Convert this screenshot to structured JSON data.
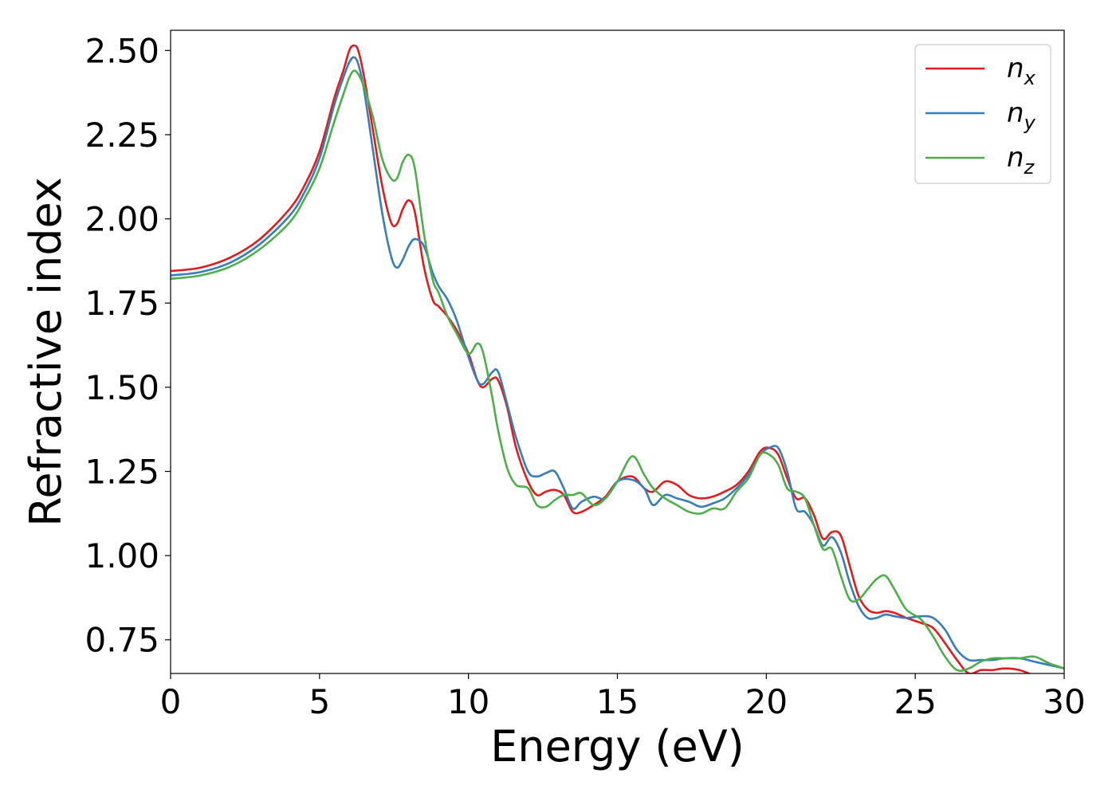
{
  "chart_data": {
    "type": "line",
    "xlabel": "Energy (eV)",
    "ylabel": "Refractive index",
    "xlim": [
      0,
      30
    ],
    "ylim": [
      0.65,
      2.56
    ],
    "xticks": [
      "0",
      "5",
      "10",
      "15",
      "20",
      "25",
      "30"
    ],
    "yticks": [
      "0.75",
      "1.00",
      "1.25",
      "1.50",
      "1.75",
      "2.00",
      "2.25",
      "2.50"
    ],
    "grid": false,
    "legend_position": "top-right",
    "series": [
      {
        "name": "n",
        "subscript": "x",
        "color": "#e41a1c",
        "x": [
          0,
          1,
          2,
          3,
          4,
          4.5,
          5,
          5.5,
          5.8,
          6.0,
          6.15,
          6.3,
          6.5,
          6.8,
          7.1,
          7.4,
          7.6,
          7.8,
          8.0,
          8.2,
          8.5,
          8.8,
          9.0,
          9.3,
          9.6,
          10.0,
          10.3,
          10.5,
          10.8,
          11.0,
          11.3,
          11.6,
          12.0,
          12.3,
          12.6,
          12.9,
          13.2,
          13.5,
          13.8,
          14.2,
          14.6,
          15.0,
          15.5,
          15.9,
          16.2,
          16.6,
          17.0,
          17.4,
          17.8,
          18.2,
          18.6,
          19.0,
          19.4,
          19.8,
          20.1,
          20.4,
          20.7,
          21.0,
          21.3,
          21.6,
          21.9,
          22.2,
          22.5,
          22.8,
          23.1,
          23.4,
          23.7,
          24.0,
          24.3,
          24.7,
          25.2,
          25.6,
          26.0,
          26.4,
          26.8,
          27.2,
          27.6,
          28.0,
          28.5,
          29.0,
          29.5,
          30.0
        ],
        "y": [
          1.845,
          1.855,
          1.885,
          1.94,
          2.03,
          2.1,
          2.2,
          2.36,
          2.44,
          2.5,
          2.515,
          2.5,
          2.42,
          2.26,
          2.1,
          1.99,
          1.985,
          2.03,
          2.055,
          2.02,
          1.86,
          1.76,
          1.74,
          1.71,
          1.67,
          1.6,
          1.52,
          1.5,
          1.525,
          1.52,
          1.44,
          1.32,
          1.22,
          1.18,
          1.19,
          1.195,
          1.18,
          1.13,
          1.13,
          1.15,
          1.175,
          1.22,
          1.235,
          1.2,
          1.19,
          1.22,
          1.21,
          1.18,
          1.17,
          1.175,
          1.19,
          1.21,
          1.25,
          1.31,
          1.32,
          1.3,
          1.23,
          1.17,
          1.17,
          1.12,
          1.05,
          1.07,
          1.06,
          0.97,
          0.88,
          0.84,
          0.83,
          0.835,
          0.83,
          0.815,
          0.8,
          0.785,
          0.74,
          0.69,
          0.65,
          0.66,
          0.66,
          0.665,
          0.66,
          0.645,
          0.645,
          0.645
        ]
      },
      {
        "name": "n",
        "subscript": "y",
        "color": "#377eb8",
        "x": [
          0,
          1,
          2,
          3,
          4,
          4.5,
          5,
          5.5,
          5.8,
          6.0,
          6.15,
          6.3,
          6.5,
          6.8,
          7.1,
          7.4,
          7.6,
          7.8,
          8.0,
          8.2,
          8.5,
          8.8,
          9.0,
          9.3,
          9.6,
          10.0,
          10.3,
          10.5,
          10.8,
          11.0,
          11.3,
          11.6,
          12.0,
          12.3,
          12.6,
          12.9,
          13.2,
          13.5,
          13.8,
          14.2,
          14.6,
          15.0,
          15.5,
          15.9,
          16.2,
          16.6,
          17.0,
          17.4,
          17.8,
          18.2,
          18.6,
          19.0,
          19.4,
          19.8,
          20.1,
          20.4,
          20.7,
          21.0,
          21.3,
          21.6,
          21.9,
          22.2,
          22.5,
          22.8,
          23.1,
          23.4,
          23.7,
          24.0,
          24.3,
          24.7,
          25.2,
          25.6,
          26.0,
          26.4,
          26.8,
          27.2,
          27.6,
          28.0,
          28.5,
          29.0,
          29.5,
          30.0
        ],
        "y": [
          1.832,
          1.842,
          1.87,
          1.925,
          2.01,
          2.08,
          2.18,
          2.34,
          2.42,
          2.465,
          2.48,
          2.46,
          2.38,
          2.2,
          2.02,
          1.89,
          1.855,
          1.88,
          1.92,
          1.94,
          1.92,
          1.84,
          1.8,
          1.76,
          1.7,
          1.59,
          1.52,
          1.51,
          1.545,
          1.545,
          1.45,
          1.35,
          1.25,
          1.235,
          1.245,
          1.25,
          1.2,
          1.14,
          1.16,
          1.175,
          1.17,
          1.22,
          1.225,
          1.2,
          1.15,
          1.18,
          1.17,
          1.16,
          1.145,
          1.155,
          1.17,
          1.2,
          1.24,
          1.3,
          1.32,
          1.32,
          1.25,
          1.14,
          1.13,
          1.09,
          1.03,
          1.055,
          1.01,
          0.92,
          0.85,
          0.815,
          0.815,
          0.825,
          0.82,
          0.815,
          0.82,
          0.815,
          0.78,
          0.72,
          0.69,
          0.69,
          0.69,
          0.695,
          0.695,
          0.685,
          0.675,
          0.665
        ]
      },
      {
        "name": "n",
        "subscript": "z",
        "color": "#4daf4a",
        "x": [
          0,
          1,
          2,
          3,
          4,
          4.5,
          5,
          5.5,
          5.8,
          6.0,
          6.15,
          6.3,
          6.5,
          6.8,
          7.1,
          7.4,
          7.6,
          7.8,
          8.0,
          8.2,
          8.5,
          8.8,
          9.0,
          9.3,
          9.6,
          10.0,
          10.3,
          10.5,
          10.8,
          11.0,
          11.3,
          11.6,
          12.0,
          12.3,
          12.6,
          12.9,
          13.2,
          13.5,
          13.8,
          14.2,
          14.6,
          15.0,
          15.5,
          15.9,
          16.2,
          16.6,
          17.0,
          17.4,
          17.8,
          18.2,
          18.6,
          19.0,
          19.4,
          19.8,
          20.1,
          20.4,
          20.7,
          21.0,
          21.3,
          21.6,
          21.9,
          22.2,
          22.5,
          22.8,
          23.1,
          23.4,
          23.7,
          24.0,
          24.3,
          24.7,
          25.2,
          25.6,
          26.0,
          26.4,
          26.8,
          27.2,
          27.6,
          28.0,
          28.5,
          29.0,
          29.5,
          30.0
        ],
        "y": [
          1.822,
          1.832,
          1.858,
          1.91,
          1.99,
          2.06,
          2.15,
          2.29,
          2.37,
          2.42,
          2.44,
          2.43,
          2.39,
          2.3,
          2.18,
          2.12,
          2.12,
          2.17,
          2.19,
          2.15,
          1.96,
          1.82,
          1.78,
          1.71,
          1.66,
          1.6,
          1.63,
          1.6,
          1.47,
          1.37,
          1.26,
          1.21,
          1.2,
          1.15,
          1.145,
          1.165,
          1.18,
          1.18,
          1.185,
          1.15,
          1.17,
          1.22,
          1.295,
          1.24,
          1.2,
          1.17,
          1.15,
          1.13,
          1.125,
          1.14,
          1.14,
          1.19,
          1.23,
          1.3,
          1.3,
          1.27,
          1.2,
          1.19,
          1.17,
          1.09,
          1.02,
          1.02,
          0.94,
          0.87,
          0.87,
          0.9,
          0.93,
          0.94,
          0.9,
          0.84,
          0.81,
          0.76,
          0.7,
          0.66,
          0.665,
          0.685,
          0.695,
          0.695,
          0.695,
          0.7,
          0.68,
          0.665
        ]
      }
    ]
  }
}
